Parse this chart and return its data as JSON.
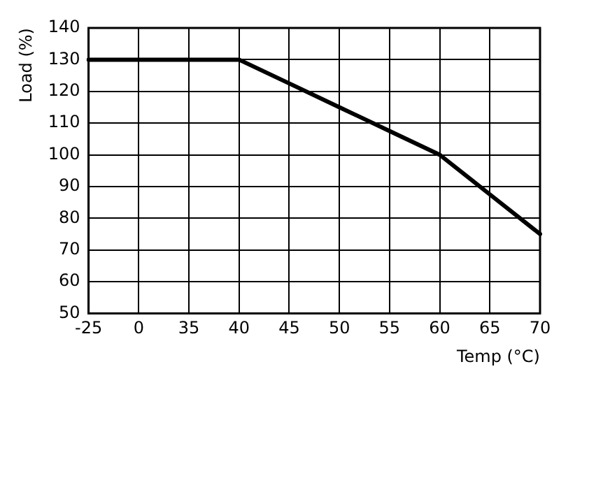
{
  "chart_data": {
    "type": "line",
    "xlabel": "Temp (°C)",
    "ylabel": "Load (%)",
    "categories": [
      "-25",
      "0",
      "35",
      "40",
      "45",
      "50",
      "55",
      "60",
      "65",
      "70"
    ],
    "series": [
      {
        "color": "#000000",
        "values": [
          130,
          130,
          130,
          130,
          122.5,
          115,
          107.5,
          100,
          87.5,
          75
        ]
      }
    ],
    "ylim": [
      50,
      140
    ],
    "yticks": [
      50,
      60,
      70,
      80,
      90,
      100,
      110,
      120,
      130,
      140
    ],
    "grid": true,
    "legend": false,
    "marker": "none",
    "line_style": "solid"
  }
}
